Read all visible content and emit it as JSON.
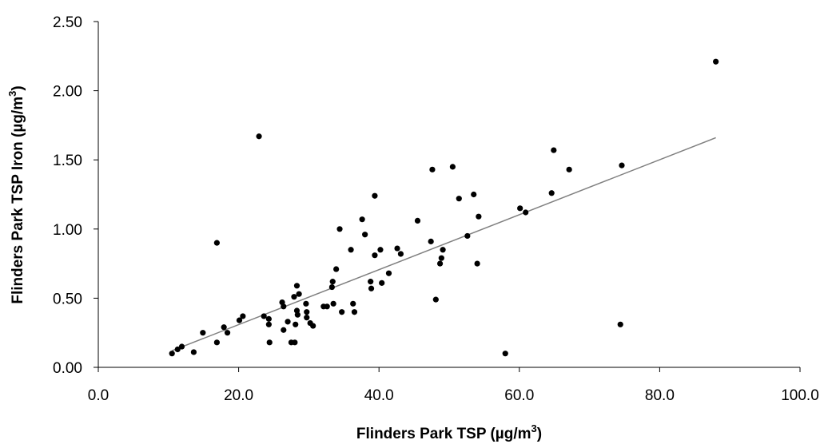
{
  "chart_data": {
    "type": "scatter",
    "title": "",
    "xlabel": "Flinders Park TSP (µg/m",
    "xlabel_sup": "3",
    "xlabel_end": ")",
    "ylabel": "Flinders Park TSP Iron (µg/m",
    "ylabel_sup": "3",
    "ylabel_end": ")",
    "xlim": [
      0,
      100
    ],
    "ylim": [
      0,
      2.5
    ],
    "x_ticks": [
      "0.0",
      "20.0",
      "40.0",
      "60.0",
      "80.0",
      "100.0"
    ],
    "y_ticks": [
      "0.00",
      "0.50",
      "1.00",
      "1.50",
      "2.00",
      "2.50"
    ],
    "grid": false,
    "legend": "none",
    "colors": {
      "points": "#000000",
      "trendline": "#808080",
      "axes": "#000000"
    },
    "trendline": {
      "x": [
        10.5,
        88.0
      ],
      "y": [
        0.12,
        1.66
      ]
    },
    "series": [
      {
        "points": [
          [
            10.5,
            0.1
          ],
          [
            11.3,
            0.13
          ],
          [
            11.9,
            0.15
          ],
          [
            13.6,
            0.11
          ],
          [
            14.9,
            0.25
          ],
          [
            16.9,
            0.18
          ],
          [
            16.9,
            0.9
          ],
          [
            17.9,
            0.29
          ],
          [
            18.4,
            0.25
          ],
          [
            20.1,
            0.34
          ],
          [
            20.6,
            0.37
          ],
          [
            22.9,
            1.67
          ],
          [
            23.6,
            0.37
          ],
          [
            24.3,
            0.35
          ],
          [
            24.3,
            0.31
          ],
          [
            24.4,
            0.18
          ],
          [
            26.2,
            0.47
          ],
          [
            26.4,
            0.44
          ],
          [
            26.4,
            0.27
          ],
          [
            27.0,
            0.33
          ],
          [
            27.5,
            0.18
          ],
          [
            27.9,
            0.51
          ],
          [
            28.0,
            0.18
          ],
          [
            28.1,
            0.31
          ],
          [
            28.3,
            0.59
          ],
          [
            28.3,
            0.41
          ],
          [
            28.4,
            0.38
          ],
          [
            28.6,
            0.53
          ],
          [
            29.6,
            0.46
          ],
          [
            29.7,
            0.4
          ],
          [
            29.7,
            0.36
          ],
          [
            30.2,
            0.32
          ],
          [
            30.6,
            0.3
          ],
          [
            32.1,
            0.44
          ],
          [
            32.6,
            0.44
          ],
          [
            33.3,
            0.58
          ],
          [
            33.4,
            0.62
          ],
          [
            33.5,
            0.46
          ],
          [
            33.9,
            0.71
          ],
          [
            34.4,
            1.0
          ],
          [
            34.7,
            0.4
          ],
          [
            36.0,
            0.85
          ],
          [
            36.3,
            0.46
          ],
          [
            36.5,
            0.4
          ],
          [
            37.6,
            1.07
          ],
          [
            38.0,
            0.96
          ],
          [
            38.8,
            0.62
          ],
          [
            38.9,
            0.57
          ],
          [
            39.4,
            1.24
          ],
          [
            39.4,
            0.81
          ],
          [
            40.2,
            0.85
          ],
          [
            40.4,
            0.61
          ],
          [
            41.4,
            0.68
          ],
          [
            42.6,
            0.86
          ],
          [
            43.1,
            0.82
          ],
          [
            45.5,
            1.06
          ],
          [
            47.4,
            0.91
          ],
          [
            47.6,
            1.43
          ],
          [
            48.1,
            0.49
          ],
          [
            48.7,
            0.75
          ],
          [
            48.9,
            0.79
          ],
          [
            49.1,
            0.85
          ],
          [
            50.5,
            1.45
          ],
          [
            51.4,
            1.22
          ],
          [
            52.6,
            0.95
          ],
          [
            53.5,
            1.25
          ],
          [
            54.0,
            0.75
          ],
          [
            54.2,
            1.09
          ],
          [
            58.0,
            0.1
          ],
          [
            60.1,
            1.15
          ],
          [
            60.9,
            1.12
          ],
          [
            64.6,
            1.26
          ],
          [
            64.9,
            1.57
          ],
          [
            67.1,
            1.43
          ],
          [
            74.4,
            0.31
          ],
          [
            74.6,
            1.46
          ],
          [
            88.0,
            2.21
          ]
        ]
      }
    ]
  }
}
